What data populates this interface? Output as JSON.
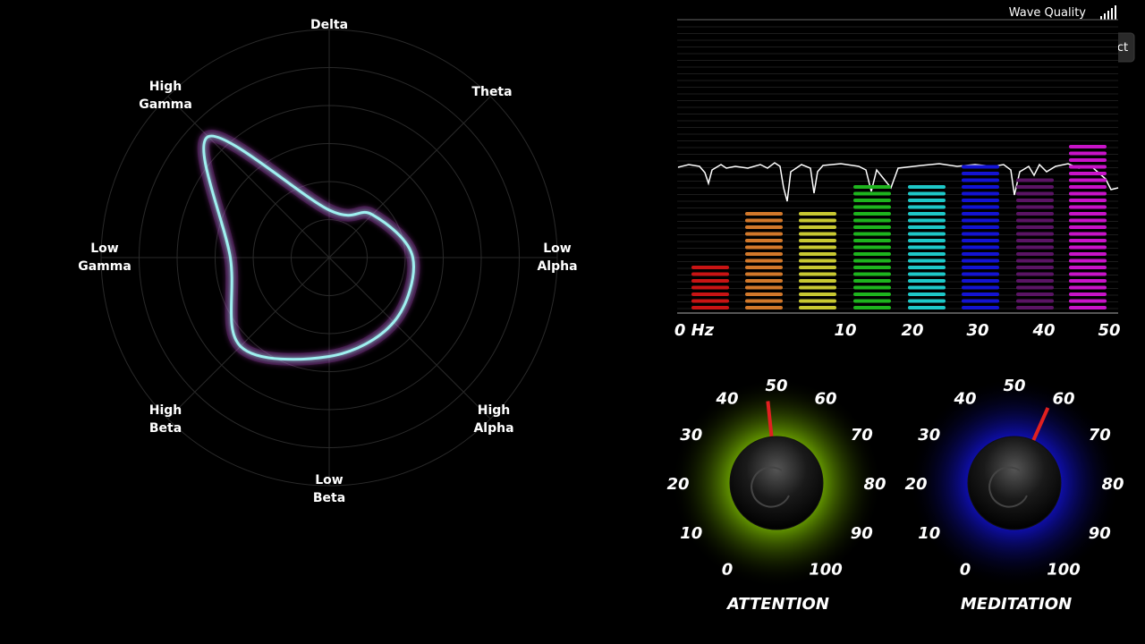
{
  "status": {
    "wave_quality_label": "Wave Quality",
    "button": "Disconnect"
  },
  "radar": {
    "labels": [
      "Delta",
      "Theta",
      "Low Alpha",
      "High Alpha",
      "Low Beta",
      "High Beta",
      "Low Gamma",
      "High Gamma"
    ],
    "values": [
      1.25,
      1.6,
      2.2,
      2.4,
      2.6,
      3.3,
      2.6,
      4.5
    ],
    "rings": 6
  },
  "spectrum": {
    "x_labels": [
      "0 Hz",
      "10",
      "20",
      "30",
      "40",
      "50"
    ],
    "bars": [
      {
        "color": "#c81414",
        "segments": 7
      },
      {
        "color": "#d2782a",
        "segments": 15
      },
      {
        "color": "#c8c832",
        "segments": 15
      },
      {
        "color": "#1eb41e",
        "segments": 19
      },
      {
        "color": "#1ec8c8",
        "segments": 19
      },
      {
        "color": "#1414d2",
        "segments": 22
      },
      {
        "color": "#5a1464",
        "segments": 20
      },
      {
        "color": "#c814c8",
        "segments": 25
      }
    ]
  },
  "gauges": [
    {
      "label": "ATTENTION",
      "value": 48,
      "glow": "#6fa800",
      "ticks": [
        0,
        10,
        20,
        30,
        40,
        50,
        60,
        70,
        80,
        90,
        100
      ]
    },
    {
      "label": "MEDITATION",
      "value": 58,
      "glow": "#1010c0",
      "ticks": [
        0,
        10,
        20,
        30,
        40,
        50,
        60,
        70,
        80,
        90,
        100
      ]
    }
  ]
}
